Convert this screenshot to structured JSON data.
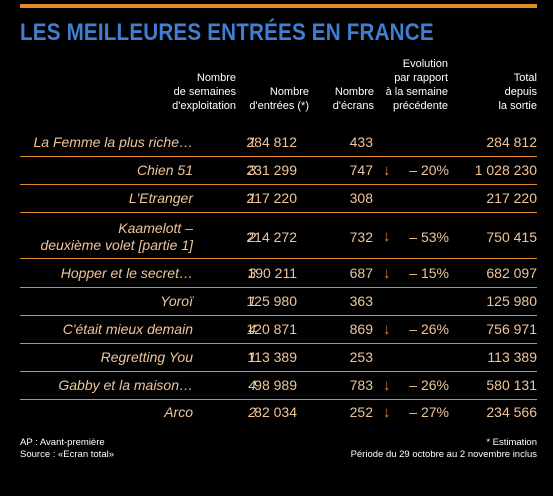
{
  "title": "LES MEILLEURES ENTRÉES EN FRANCE",
  "headers": {
    "weeks": [
      "Nombre",
      "de semaines",
      "d'exploitation"
    ],
    "entries": [
      "Nombre",
      "d'entrées (*)"
    ],
    "screens": [
      "Nombre",
      "d'écrans"
    ],
    "evolution": [
      "Evolution",
      "par rapport",
      "à la semaine",
      "précédente"
    ],
    "total": [
      "Total",
      "depuis",
      "la sortie"
    ]
  },
  "rows": [
    {
      "film": "La Femme la plus riche…",
      "weeks": "1",
      "entries": "284 812",
      "screens": "433",
      "arrow": "",
      "evolution": "",
      "total": "284 812"
    },
    {
      "film": "Chien 51",
      "weeks": "3",
      "entries": "231 299",
      "screens": "747",
      "arrow": "↓",
      "evolution": "– 20%",
      "total": "1 028 230"
    },
    {
      "film": "L'Etranger",
      "weeks": "1",
      "entries": "217 220",
      "screens": "308",
      "arrow": "",
      "evolution": "",
      "total": "217 220"
    },
    {
      "film_line1": "Kaamelott –",
      "film_line2": "deuxième volet [partie 1]",
      "weeks": "2",
      "entries": "214 272",
      "screens": "732",
      "arrow": "↓",
      "evolution": "– 53%",
      "total": "750 415"
    },
    {
      "film": "Hopper et le secret…",
      "weeks": "3",
      "entries": "190 211",
      "screens": "687",
      "arrow": "↓",
      "evolution": "– 15%",
      "total": "682 097"
    },
    {
      "film": "Yoroï",
      "weeks": "1",
      "entries": "125 980",
      "screens": "363",
      "arrow": "",
      "evolution": "",
      "total": "125 980"
    },
    {
      "film": "C'était mieux demain",
      "weeks": "4",
      "entries": "120 871",
      "screens": "869",
      "arrow": "↓",
      "evolution": "– 26%",
      "total": "756 971"
    },
    {
      "film": "Regretting You",
      "weeks": "1",
      "entries": "113 389",
      "screens": "253",
      "arrow": "",
      "evolution": "",
      "total": "113 389"
    },
    {
      "film": "Gabby et la maison…",
      "weeks": "4",
      "entries": "98 989",
      "screens": "783",
      "arrow": "↓",
      "evolution": "– 26%",
      "total": "580 131"
    },
    {
      "film": "Arco",
      "weeks": "2",
      "entries": "82 034",
      "screens": "252",
      "arrow": "↓",
      "evolution": "– 27%",
      "total": "234 566"
    }
  ],
  "footer": {
    "ap": "AP : Avant-première",
    "source": "Source : «Ecran total»",
    "estimation": "* Estimation",
    "period": "Période du 29 octobre au 2 novembre inclus"
  },
  "colors": {
    "accent": "#e08a2c",
    "title": "#3f7ed0",
    "text": "#f0c49a",
    "background": "#000000"
  }
}
